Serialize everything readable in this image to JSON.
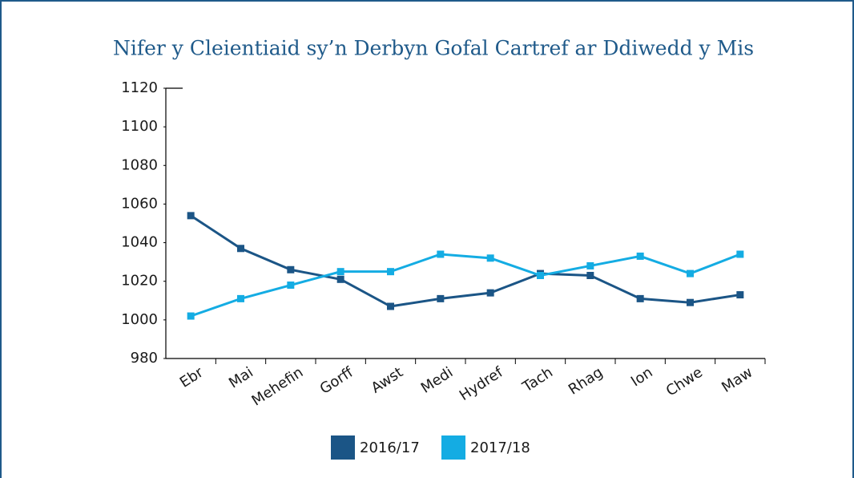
{
  "chart_data": {
    "type": "line",
    "title": "Nifer y Cleientiaid sy’n Derbyn Gofal Cartref ar Ddiwedd y Mis",
    "categories": [
      "Ebr",
      "Mai",
      "Mehefin",
      "Gorff",
      "Awst",
      "Medi",
      "Hydref",
      "Tach",
      "Rhag",
      "Ion",
      "Chwe",
      "Maw"
    ],
    "series": [
      {
        "name": "2016/17",
        "color": "#1b5586",
        "values": [
          1054,
          1037,
          1026,
          1021,
          1007,
          1011,
          1014,
          1024,
          1023,
          1011,
          1009,
          1013
        ]
      },
      {
        "name": "2017/18",
        "color": "#14ace3",
        "values": [
          1002,
          1011,
          1018,
          1025,
          1025,
          1034,
          1032,
          1023,
          1028,
          1033,
          1024,
          1034
        ]
      }
    ],
    "ylim": [
      980,
      1120
    ],
    "yticks": [
      980,
      1000,
      1020,
      1040,
      1060,
      1080,
      1100,
      1120
    ],
    "grid": false
  }
}
